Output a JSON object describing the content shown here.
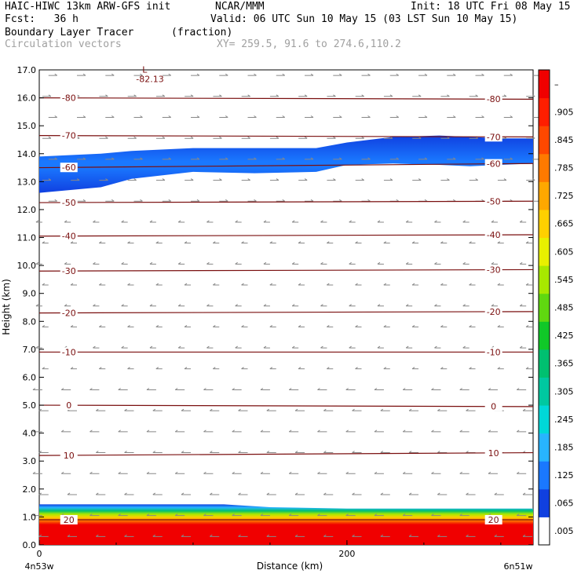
{
  "header": {
    "model": "HAIC-HIWC 13km ARW-GFS init",
    "org": "NCAR/MMM",
    "init": "Init: 18 UTC Fri 08 May 15",
    "fcst": "Fcst:   36 h",
    "valid": "Valid: 06 UTC Sun 10 May 15 (03 LST Sun 10 May 15)",
    "field": "Boundary Layer Tracer",
    "units": "(fraction)",
    "vectors": "Circulation vectors",
    "xy": "XY= 259.5, 91.6 to 274.6,110.2"
  },
  "chart_data": {
    "type": "heatmap",
    "xlabel": "Distance (km)",
    "ylabel": "Height (km)",
    "xlim": [
      0,
      321
    ],
    "ylim": [
      0,
      17
    ],
    "x_ticks": [
      "0",
      "200"
    ],
    "y_ticks": [
      "0.0",
      "1.0",
      "2.0",
      "3.0",
      "4.0",
      "5.0",
      "6.0",
      "7.0",
      "8.0",
      "9.0",
      "10.0",
      "11.0",
      "12.0",
      "13.0",
      "14.0",
      "15.0",
      "16.0",
      "17.0"
    ],
    "x_endpoints": {
      "left": "4n53w",
      "right": "6n51w"
    },
    "colorbar": {
      "labels": [
        ".005",
        ".065",
        ".125",
        ".185",
        ".245",
        ".305",
        ".365",
        ".425",
        ".485",
        ".545",
        ".605",
        ".665",
        ".725",
        ".785",
        ".845",
        ".905",
        "–"
      ],
      "colors": [
        "#ffffff",
        "#1040e0",
        "#1a78ff",
        "#28b4ff",
        "#00d8d8",
        "#00c8a0",
        "#00c070",
        "#10c828",
        "#60d810",
        "#a8e800",
        "#e8f000",
        "#ffd000",
        "#ffa800",
        "#ff7a00",
        "#ff4800",
        "#ff1e00",
        "#f00000"
      ]
    },
    "isotherms": [
      {
        "label": "-80",
        "left_y": 16.0,
        "right_y": 15.95
      },
      {
        "label": "-70",
        "left_y": 14.65,
        "right_y": 14.6
      },
      {
        "label": "-60",
        "left_y": 13.5,
        "right_y": 13.65
      },
      {
        "label": "-50",
        "left_y": 12.25,
        "right_y": 12.3
      },
      {
        "label": "-40",
        "left_y": 11.05,
        "right_y": 11.1
      },
      {
        "label": "-30",
        "left_y": 9.8,
        "right_y": 9.85
      },
      {
        "label": "-20",
        "left_y": 8.3,
        "right_y": 8.35
      },
      {
        "label": "-10",
        "left_y": 6.9,
        "right_y": 6.9
      },
      {
        "label": "0",
        "left_y": 5.0,
        "right_y": 4.95
      },
      {
        "label": "10",
        "left_y": 3.2,
        "right_y": 3.3
      },
      {
        "label": "20",
        "left_y": 0.9,
        "right_y": 0.9
      }
    ],
    "minimum": {
      "marker": "L",
      "value": "-82.13",
      "x": 67,
      "y": 16.9
    },
    "tracer_layers": [
      {
        "name": "upper",
        "x": [
          0,
          40,
          60,
          100,
          140,
          180,
          200,
          230,
          260,
          280,
          300,
          321
        ],
        "top": [
          13.9,
          14.0,
          14.1,
          14.2,
          14.2,
          14.2,
          14.4,
          14.6,
          14.65,
          14.6,
          14.55,
          14.55
        ],
        "bottom": [
          12.6,
          12.8,
          13.1,
          13.35,
          13.3,
          13.35,
          13.6,
          13.65,
          13.6,
          13.55,
          13.6,
          13.65
        ]
      },
      {
        "name": "boundary",
        "x": [
          0,
          40,
          80,
          120,
          150,
          200,
          250,
          321
        ],
        "top": [
          1.45,
          1.45,
          1.45,
          1.45,
          1.35,
          1.3,
          1.3,
          1.3
        ],
        "bottom": [
          0,
          0,
          0,
          0,
          0,
          0,
          0,
          0
        ]
      }
    ]
  }
}
